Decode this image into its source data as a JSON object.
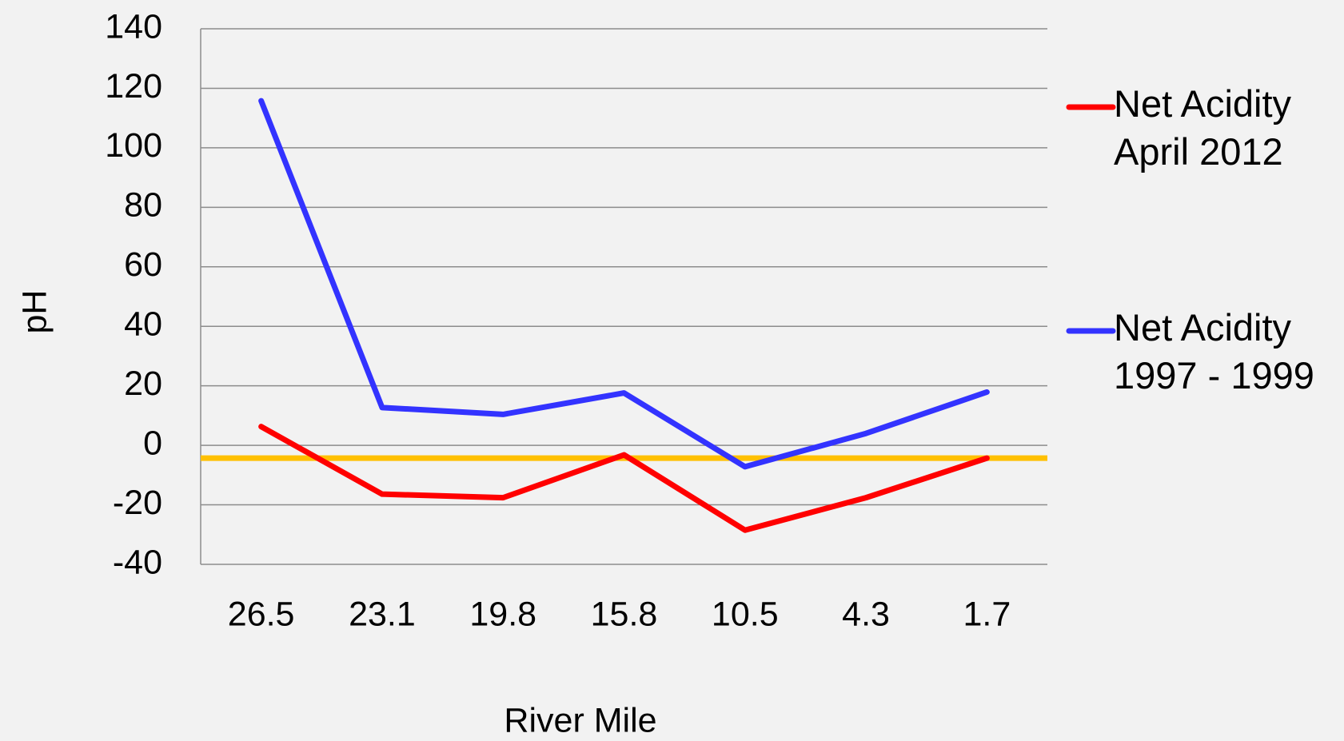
{
  "chart_data": {
    "type": "line",
    "x_label": "River Mile",
    "y_label": "pH",
    "categories": [
      "26.5",
      "23.1",
      "19.8",
      "15.8",
      "10.5",
      "4.3",
      "1.7"
    ],
    "series": [
      {
        "name": "Net Acidity April 2012",
        "color": "#ff0000",
        "values": [
          6.3,
          -16.4,
          -17.6,
          -3.2,
          -28.5,
          -17.6,
          -4.3
        ]
      },
      {
        "name": "Net Acidity 1997 - 1999",
        "color": "#3333ff",
        "values": [
          115.8,
          12.7,
          10.4,
          17.6,
          -7.2,
          4,
          17.9
        ]
      }
    ],
    "reference_line": {
      "value": -4.3,
      "color": "#ffc000"
    },
    "ylim": [
      -40,
      140
    ],
    "yticks": [
      -40,
      -20,
      0,
      20,
      40,
      60,
      80,
      100,
      120,
      140
    ],
    "grid": true,
    "legend": "right"
  }
}
